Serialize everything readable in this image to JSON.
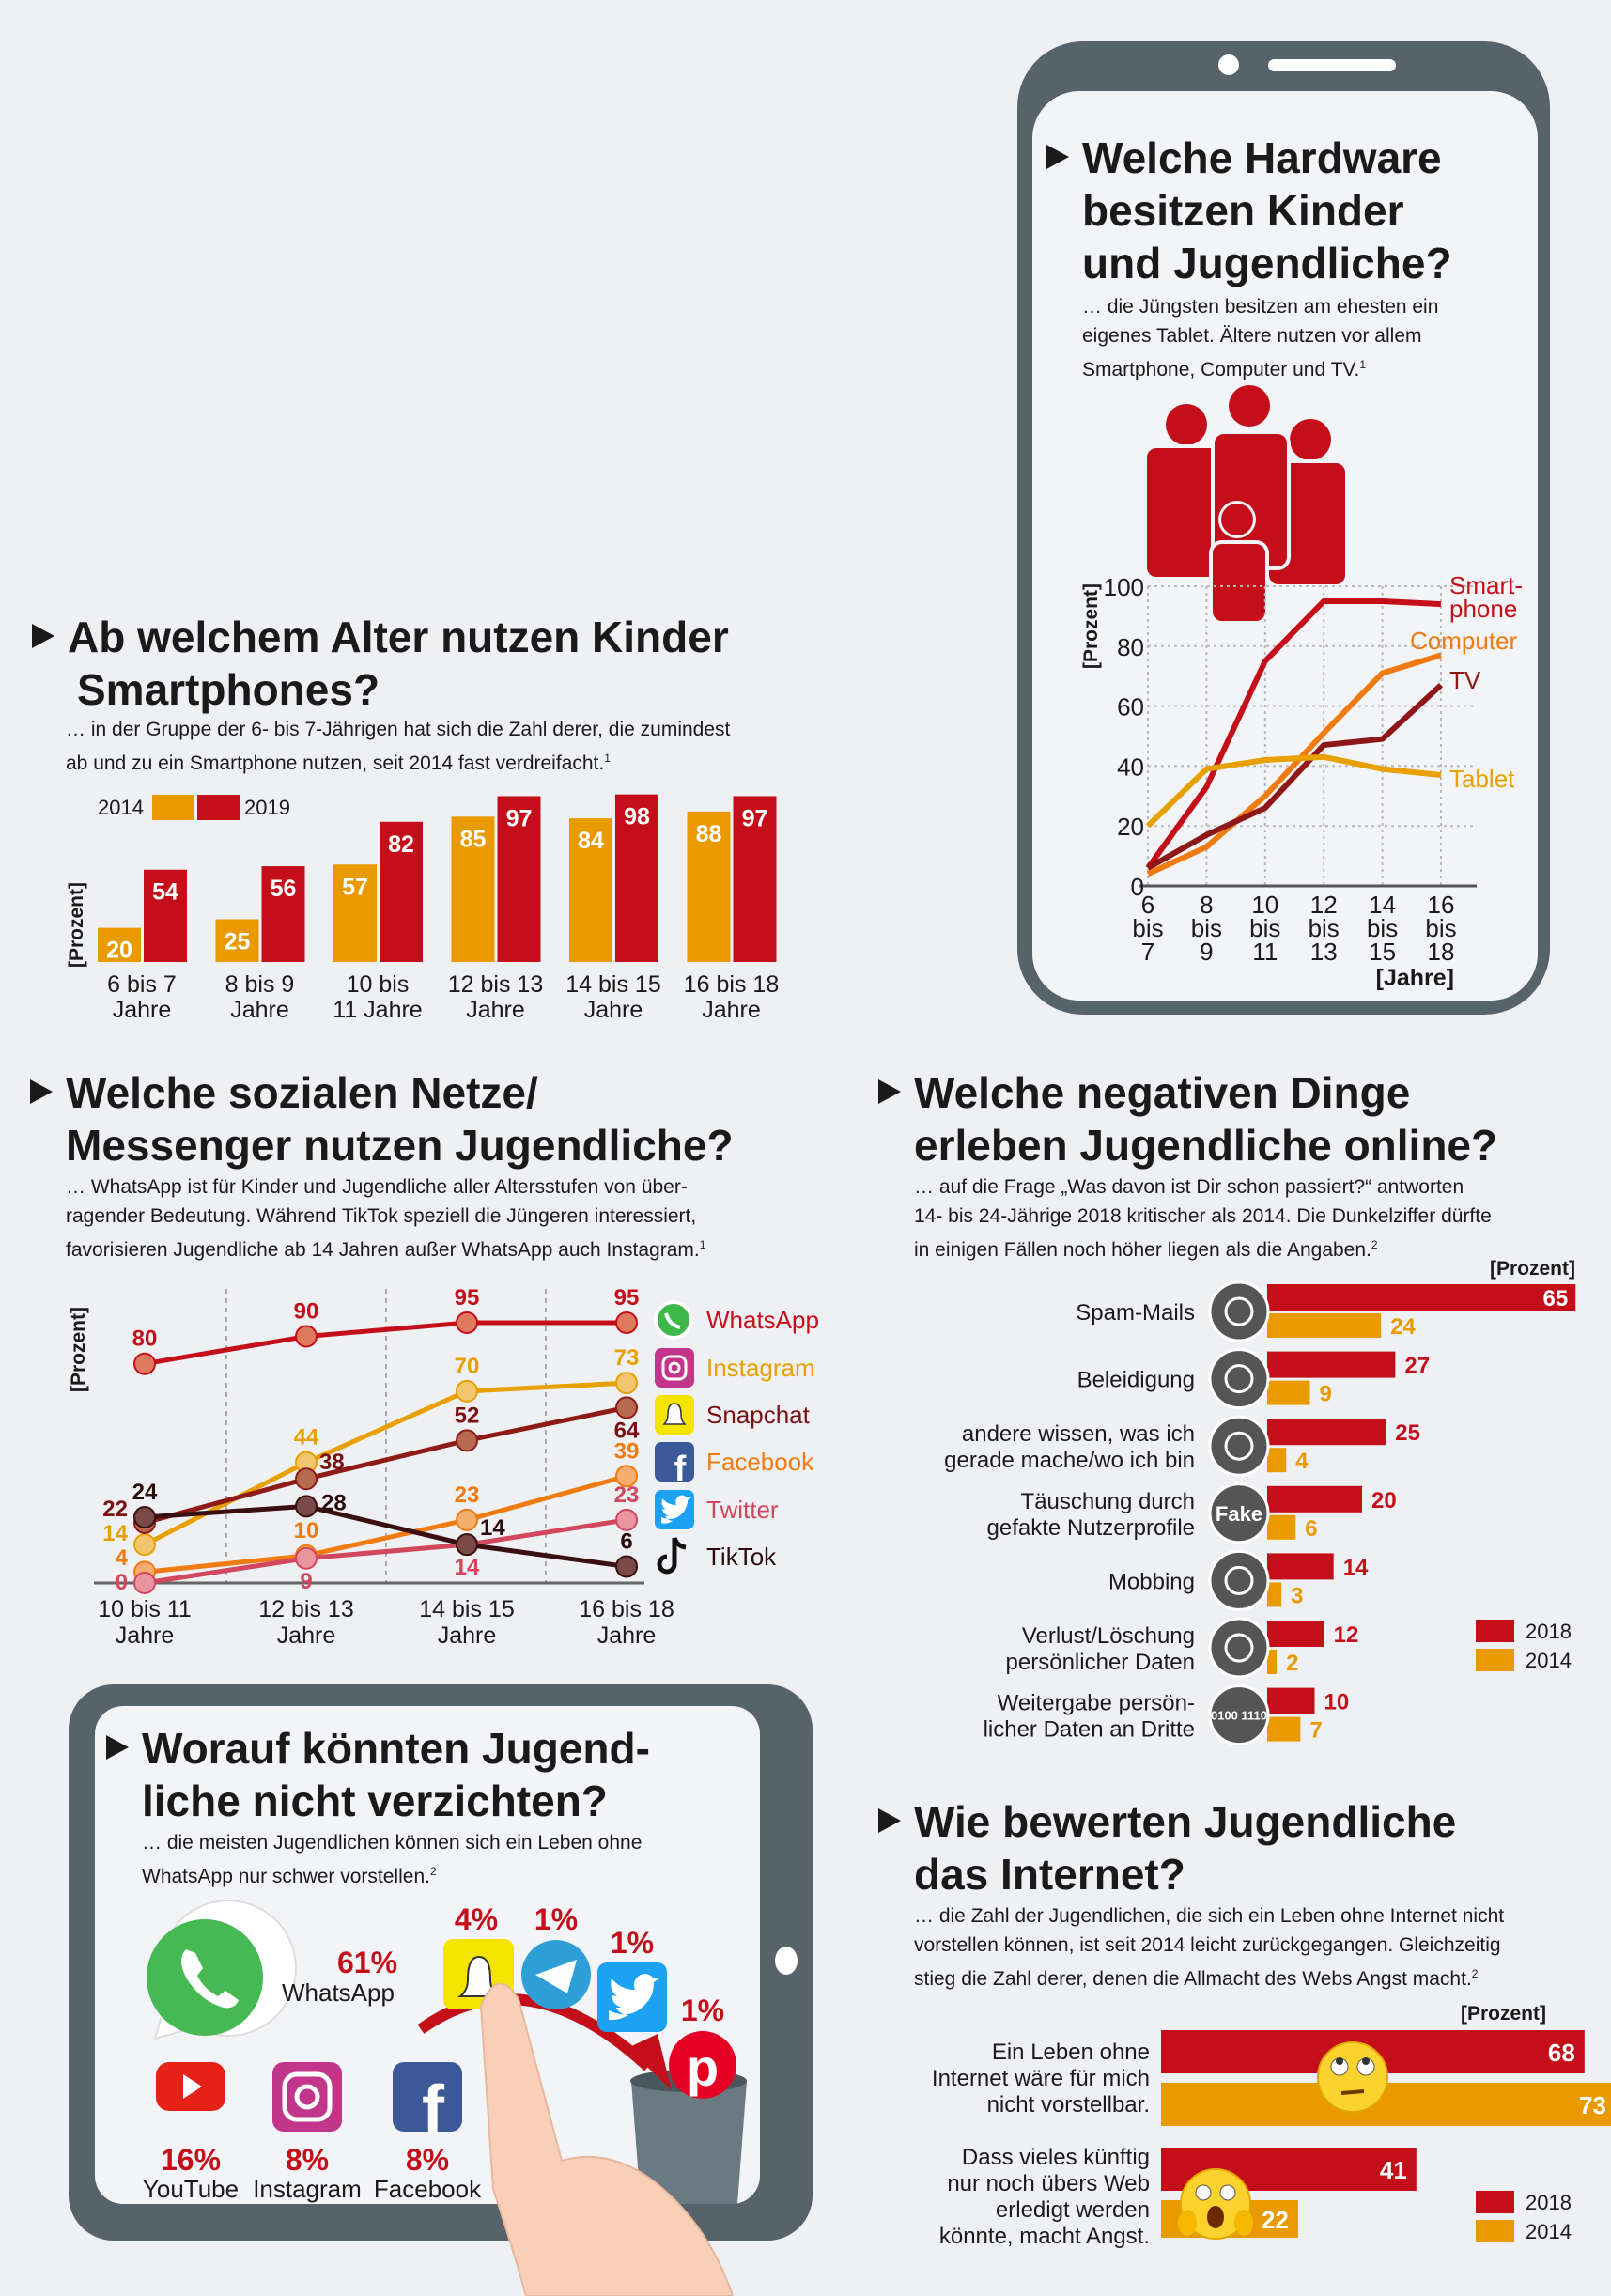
{
  "colors": {
    "red": "#c40f1a",
    "orange": "#f07b10",
    "amber": "#e89a00",
    "darkred": "#8e1616",
    "frame": "#56636b",
    "background": "#eff0f4"
  },
  "chart_data": [
    {
      "type": "bar",
      "title_lines": [
        "Ab welchem Alter nutzen Kinder",
        "Smartphones?"
      ],
      "subtitle_lines": [
        "… in der Gruppe der 6- bis 7-Jährigen hat sich die Zahl derer, die zumindest",
        "ab und zu ein Smartphone nutzen, seit 2014 fast verdreifacht."
      ],
      "footnote": "1",
      "ylabel": "[Prozent]",
      "ylim": [
        0,
        100
      ],
      "legend": "top-left",
      "categories": [
        [
          "6 bis 7",
          "Jahre"
        ],
        [
          "8 bis 9",
          "Jahre"
        ],
        [
          "10 bis",
          "11 Jahre"
        ],
        [
          "12 bis 13",
          "Jahre"
        ],
        [
          "14 bis 15",
          "Jahre"
        ],
        [
          "16 bis 18",
          "Jahre"
        ]
      ],
      "series": [
        {
          "name": "2014",
          "color": "#e89a00",
          "values": [
            20,
            25,
            57,
            85,
            84,
            88
          ]
        },
        {
          "name": "2019",
          "color": "#c40f1a",
          "values": [
            54,
            56,
            82,
            97,
            98,
            97
          ]
        }
      ]
    },
    {
      "type": "line",
      "title_lines": [
        "Welche Hardware",
        "besitzen Kinder",
        "und Jugendliche?"
      ],
      "subtitle_lines": [
        "… die Jüngsten besitzen am ehesten ein",
        "eigenes Tablet. Ältere nutzen vor allem",
        "Smartphone, Computer und TV."
      ],
      "footnote": "1",
      "ylabel": "[Prozent]",
      "xlabel": "[Jahre]",
      "ylim": [
        0,
        100
      ],
      "yticks": [
        "0",
        "20",
        "40",
        "60",
        "80",
        "100"
      ],
      "grid": true,
      "categories": [
        [
          "6",
          "bis",
          "7"
        ],
        [
          "8",
          "bis",
          "9"
        ],
        [
          "10",
          "bis",
          "11"
        ],
        [
          "12",
          "bis",
          "13"
        ],
        [
          "14",
          "bis",
          "15"
        ],
        [
          "16",
          "bis",
          "18"
        ]
      ],
      "series": [
        {
          "name_lines": [
            "Smart-",
            "phone"
          ],
          "color": "#c40f1a",
          "values": [
            6,
            33,
            75,
            95,
            95,
            94
          ]
        },
        {
          "name_lines": [
            "Computer"
          ],
          "color": "#f07b10",
          "values": [
            4,
            13,
            30,
            51,
            71,
            77
          ]
        },
        {
          "name_lines": [
            "TV"
          ],
          "color": "#8e1616",
          "values": [
            6,
            17,
            26,
            47,
            49,
            67
          ]
        },
        {
          "name_lines": [
            "Tablet"
          ],
          "color": "#e8a000",
          "values": [
            20,
            39,
            42,
            43,
            39,
            37
          ]
        }
      ]
    },
    {
      "type": "line",
      "title_lines": [
        "Welche sozialen Netze/",
        "Messenger nutzen Jugendliche?"
      ],
      "subtitle_lines": [
        "… WhatsApp ist für Kinder und Jugendliche aller Altersstufen von über-",
        "ragender Bedeutung. Während TikTok speziell die Jüngeren interessiert,",
        "favorisieren Jugendliche ab 14 Jahren außer WhatsApp auch Instagram."
      ],
      "footnote": "1",
      "ylabel": "[Prozent]",
      "ylim": [
        0,
        100
      ],
      "legend": "right",
      "categories": [
        [
          "10 bis 11",
          "Jahre"
        ],
        [
          "12 bis 13",
          "Jahre"
        ],
        [
          "14 bis 15",
          "Jahre"
        ],
        [
          "16 bis 18",
          "Jahre"
        ]
      ],
      "series": [
        {
          "name": "WhatsApp",
          "icon": "whatsapp-icon",
          "color": "#c40f1a",
          "fill": "#e07a5f",
          "label_color": "#c40f1a",
          "values": [
            80,
            90,
            95,
            95
          ]
        },
        {
          "name": "Instagram",
          "icon": "instagram-icon",
          "color": "#e8a000",
          "fill": "#f3c56f",
          "label_color": "#e8a000",
          "values": [
            14,
            44,
            70,
            73
          ]
        },
        {
          "name": "Snapchat",
          "icon": "snapchat-icon",
          "color": "#8e1b16",
          "fill": "#b86a50",
          "label_color": "#7a1010",
          "values": [
            22,
            38,
            52,
            64
          ]
        },
        {
          "name": "Facebook",
          "icon": "facebook-icon",
          "color": "#f07b10",
          "fill": "#f6ad70",
          "label_color": "#f07b10",
          "values": [
            4,
            10,
            23,
            39
          ]
        },
        {
          "name": "Twitter",
          "icon": "twitter-icon",
          "color": "#d0475e",
          "fill": "#e8959f",
          "label_color": "#d0475e",
          "values": [
            0,
            9,
            14,
            23
          ]
        },
        {
          "name": "TikTok",
          "icon": "tiktok-icon",
          "color": "#3a0f0f",
          "fill": "#7a4a48",
          "label_color": "#2a0a0a",
          "values": [
            24,
            28,
            14,
            6
          ]
        }
      ]
    },
    {
      "type": "bar",
      "orientation": "horizontal",
      "title_lines": [
        "Welche negativen Dinge",
        "erleben Jugendliche online?"
      ],
      "subtitle_lines": [
        "… auf die Frage „Was davon ist Dir schon passiert?“ antworten",
        "14- bis 24-Jährige 2018 kritischer als 2014. Die Dunkelziffer dürfte",
        "in einigen Fällen noch höher liegen als die Angaben."
      ],
      "footnote": "2",
      "unit_label": "[Prozent]",
      "legend": "bottom-right",
      "categories": [
        {
          "lines": [
            "Spam-Mails"
          ],
          "icon": "spam-mail-icon"
        },
        {
          "lines": [
            "Beleidigung"
          ],
          "icon": "skull-icon"
        },
        {
          "lines": [
            "andere wissen, was ich",
            "gerade mache/wo ich bin"
          ],
          "icon": "location-pin-icon"
        },
        {
          "lines": [
            "Täuschung durch",
            "gefakte Nutzerprofile"
          ],
          "icon": "fake-profile-icon",
          "icon_text": "Fake"
        },
        {
          "lines": [
            "Mobbing"
          ],
          "icon": "mobbing-icon"
        },
        {
          "lines": [
            "Verlust/Löschung",
            "persönlicher Daten"
          ],
          "icon": "trash-icon"
        },
        {
          "lines": [
            "Weitergabe persön-",
            "licher Daten an Dritte"
          ],
          "icon": "binary-data-icon",
          "icon_text": "0100 1110"
        }
      ],
      "series": [
        {
          "name": "2018",
          "color": "#c40f1a",
          "values": [
            65,
            27,
            25,
            20,
            14,
            12,
            10
          ]
        },
        {
          "name": "2014",
          "color": "#e89a00",
          "values": [
            24,
            9,
            4,
            6,
            3,
            2,
            7
          ]
        }
      ]
    },
    {
      "type": "bar",
      "orientation": "horizontal",
      "title_lines": [
        "Wie bewerten Jugendliche",
        "das Internet?"
      ],
      "subtitle_lines": [
        "… die Zahl der Jugendlichen, die sich ein Leben ohne Internet nicht",
        "vorstellen können, ist seit 2014 leicht zurückgegangen. Gleichzeitig",
        "stieg die Zahl derer, denen die Allmacht des Webs Angst macht."
      ],
      "footnote": "2",
      "unit_label": "[Prozent]",
      "legend": "bottom-right",
      "categories": [
        {
          "lines": [
            "Ein Leben ohne",
            "Internet wäre für mich",
            "nicht vorstellbar."
          ],
          "icon": "eye-roll-emoji-icon"
        },
        {
          "lines": [
            "Dass vieles künftig",
            "nur noch übers Web",
            "erledigt werden",
            "könnte, macht Angst."
          ],
          "icon": "scared-emoji-icon"
        }
      ],
      "series": [
        {
          "name": "2018",
          "color": "#c40f1a",
          "values": [
            68,
            41
          ]
        },
        {
          "name": "2014",
          "color": "#e89a00",
          "values": [
            73,
            22
          ]
        }
      ]
    }
  ],
  "worauf": {
    "title_lines": [
      "Worauf könnten Jugend-",
      "liche nicht verzichten?"
    ],
    "subtitle_lines": [
      "… die meisten Jugendlichen können sich ein Leben ohne",
      "WhatsApp nur schwer vorstellen."
    ],
    "footnote": "2",
    "items": [
      {
        "name": "WhatsApp",
        "percent": "61%",
        "icon": "whatsapp-icon"
      },
      {
        "name": "YouTube",
        "percent": "16%",
        "icon": "youtube-icon"
      },
      {
        "name": "Instagram",
        "percent": "8%",
        "icon": "instagram-icon"
      },
      {
        "name": "Facebook",
        "percent": "8%",
        "icon": "facebook-icon"
      },
      {
        "name": "",
        "percent": "4%",
        "icon": "snapchat-icon"
      },
      {
        "name": "",
        "percent": "1%",
        "icon": "telegram-icon"
      },
      {
        "name": "",
        "percent": "1%",
        "icon": "twitter-icon"
      },
      {
        "name": "",
        "percent": "1%",
        "icon": "pinterest-icon"
      }
    ]
  }
}
